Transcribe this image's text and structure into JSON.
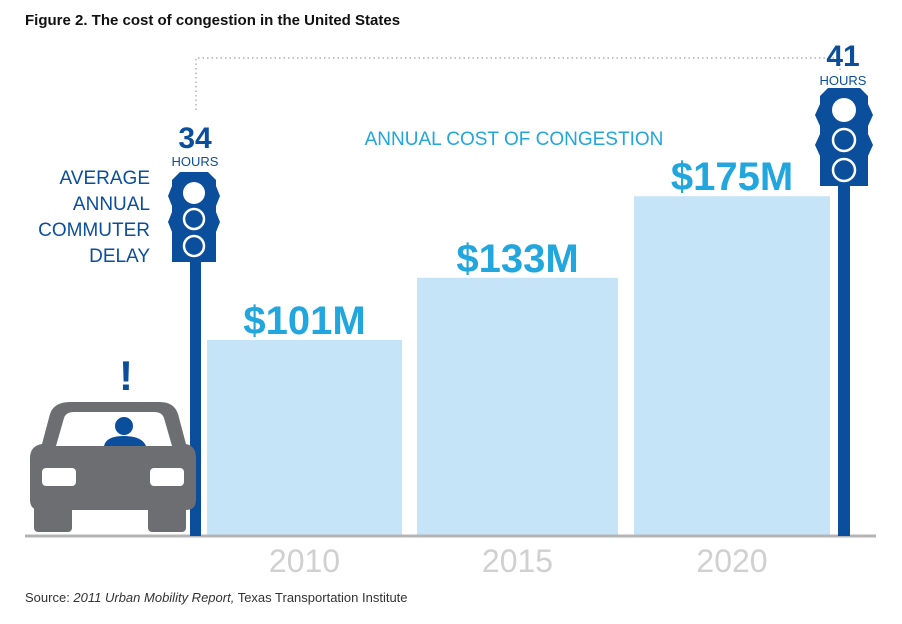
{
  "figure_title": "Figure 2. The cost of congestion in the United States",
  "source": {
    "prefix": "Source: ",
    "report": "2011 Urban Mobility Report,",
    "suffix": " Texas Transportation Institute"
  },
  "annual_cost_heading": "ANNUAL COST OF CONGESTION",
  "delay_label_lines": [
    "AVERAGE",
    "ANNUAL",
    "COMMUTER",
    "DELAY"
  ],
  "colors": {
    "bar": "#c6e4f7",
    "value_text": "#21a6de",
    "navy": "#0b4f9c",
    "axis_text": "#d0d0d0",
    "car": "#6d6e71"
  },
  "icons": [
    "traffic-light-icon",
    "car-icon",
    "driver-icon",
    "exclamation-icon"
  ],
  "chart_data": {
    "type": "bar",
    "title": "ANNUAL COST OF CONGESTION",
    "categories": [
      "2010",
      "2015",
      "2020"
    ],
    "values": [
      101,
      133,
      175
    ],
    "value_labels": [
      "$101M",
      "$133M",
      "$175M"
    ],
    "ylim": [
      0,
      240
    ],
    "grid": false,
    "delay_markers": [
      {
        "value": "34",
        "unit": "HOURS"
      },
      {
        "value": "41",
        "unit": "HOURS"
      }
    ]
  }
}
